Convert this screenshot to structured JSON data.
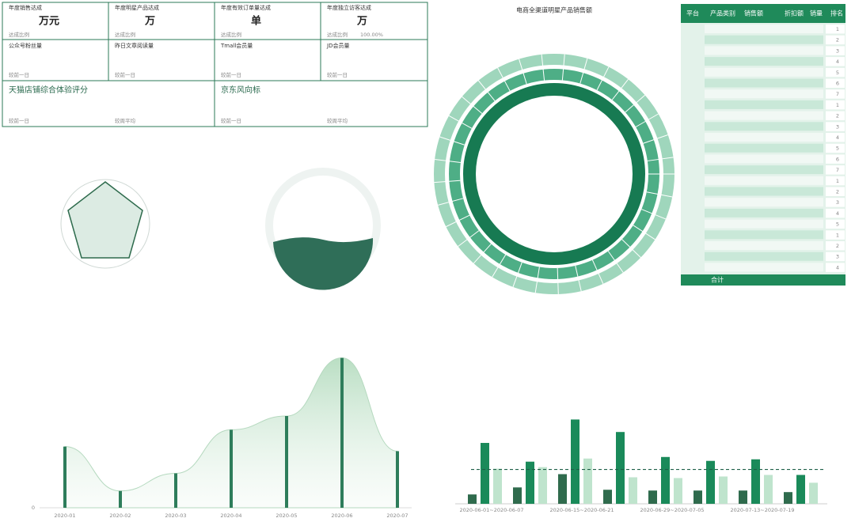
{
  "kpi_cards": [
    {
      "title": "年度销售达成",
      "unit": "万元",
      "sub": "达成比例"
    },
    {
      "title": "年度明星产品达成",
      "unit": "万",
      "sub": "达成比例"
    },
    {
      "title": "年度有效订单量达成",
      "unit": "单",
      "sub": "达成比例"
    },
    {
      "title": "年度独立访客达成",
      "unit": "万",
      "sub": "达成比例",
      "value": "100.00%"
    }
  ],
  "social_cards": [
    {
      "title": "公众号粉丝量",
      "sub": "较前一日"
    },
    {
      "title": "昨日文章阅读量",
      "sub": "较前一日"
    },
    {
      "title": "Tmall会员量",
      "sub": "较前一日"
    },
    {
      "title": "JD会员量",
      "sub": "较前一日"
    }
  ],
  "score_cards": [
    {
      "title": "天猫店铺综合体验评分",
      "subs": [
        "较前一日",
        "较周平均"
      ]
    },
    {
      "title": "京东风向标",
      "subs": [
        "较前一日",
        "较周平均"
      ]
    }
  ],
  "sunburst": {
    "title": "电商全渠道明星产品销售额"
  },
  "table": {
    "headers": [
      "平台",
      "产品类别",
      "销售额",
      "折扣额",
      "销量",
      "排名"
    ],
    "ranks": [
      1,
      2,
      3,
      4,
      5,
      6,
      7,
      1,
      2,
      3,
      4,
      5,
      6,
      7,
      1,
      2,
      3,
      4,
      5,
      1,
      2,
      3,
      4
    ],
    "footer": "合计"
  },
  "chart_data": [
    {
      "type": "area",
      "categories": [
        "2020-01",
        "2020-02",
        "2020-03",
        "2020-04",
        "2020-05",
        "2020-06",
        "2020-07"
      ],
      "values": [
        80,
        22,
        45,
        102,
        120,
        196,
        74
      ],
      "color": "#2e7d5b",
      "ylim": [
        0,
        240
      ],
      "yticks": [
        0
      ]
    },
    {
      "type": "bar",
      "categories": [
        "2020-06-01~2020-06-07",
        null,
        "2020-06-15~2020-06-21",
        null,
        "2020-06-29~2020-07-05",
        null,
        "2020-07-13~2020-07-19",
        null
      ],
      "series": [
        {
          "color": "#2f6b4d",
          "values": [
            12,
            21,
            38,
            18,
            17,
            17,
            17,
            15
          ]
        },
        {
          "color": "#1a8a5a",
          "values": [
            78,
            54,
            108,
            92,
            60,
            55,
            57,
            37
          ]
        },
        {
          "color": "#bfe4cd",
          "values": [
            45,
            47,
            58,
            34,
            33,
            35,
            37,
            27
          ]
        }
      ],
      "reference_line": 44,
      "ylim": [
        0,
        230
      ]
    }
  ]
}
